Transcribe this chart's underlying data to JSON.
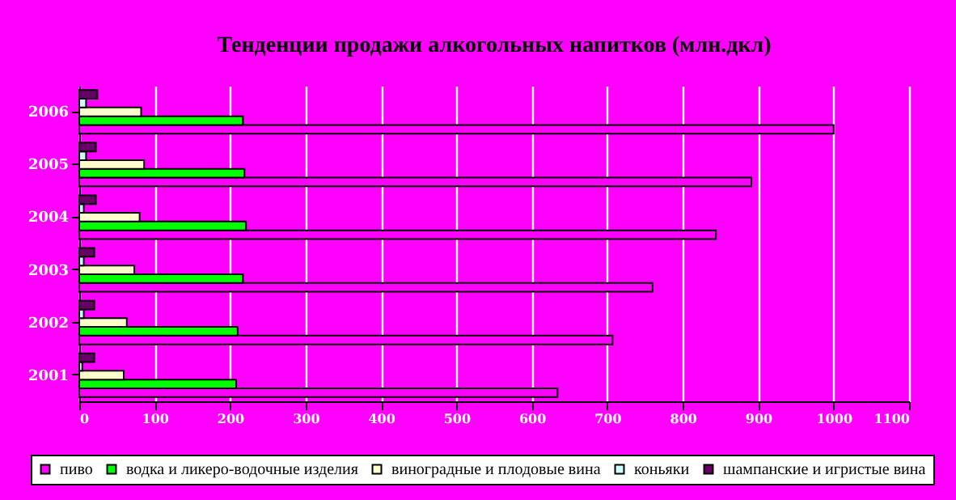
{
  "chart_data": {
    "type": "bar",
    "orientation": "horizontal",
    "title": "Тенденции продажи алкогольных напитков (млн.дкл)",
    "categories": [
      "2006",
      "2005",
      "2004",
      "2003",
      "2002",
      "2001"
    ],
    "series": [
      {
        "name": "пиво",
        "color": "#ff00ff",
        "values": [
          1000,
          891,
          844,
          760,
          707,
          634
        ]
      },
      {
        "name": "водка и ликеро-водочные изделия",
        "color": "#00ff00",
        "values": [
          217,
          219,
          221,
          217,
          210,
          208
        ]
      },
      {
        "name": "виноградные и плодовые вина",
        "color": "#ffffcc",
        "values": [
          82,
          86,
          80,
          73,
          63,
          59
        ]
      },
      {
        "name": "коньяки",
        "color": "#ccffff",
        "values": [
          9,
          9,
          6,
          6,
          6,
          4
        ]
      },
      {
        "name": "шампанские и игристые вина",
        "color": "#660066",
        "values": [
          24,
          22,
          22,
          20,
          20,
          20
        ]
      }
    ],
    "xlim": [
      0,
      1100
    ],
    "xticks": [
      0,
      100,
      200,
      300,
      400,
      500,
      600,
      700,
      800,
      900,
      1000,
      1100
    ],
    "grid": "x",
    "legend": "bottom"
  }
}
